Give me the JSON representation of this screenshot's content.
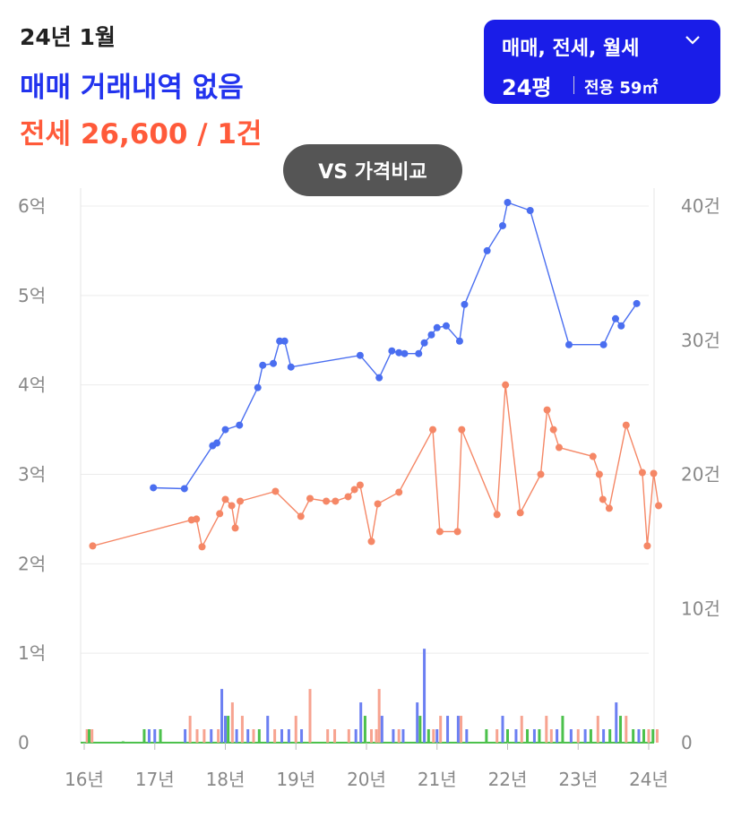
{
  "header": {
    "date": "24년 1월",
    "sale_status": "매매 거래내역 없음",
    "jeonse_summary": "전세 26,600 / 1건"
  },
  "selector": {
    "types": "매매, 전세, 월세",
    "pyeong": "24평",
    "area": "전용 59㎡",
    "icon": "chevron-down-icon"
  },
  "compare_button": "VS 가격비교",
  "colors": {
    "sale": "#4a6ef0",
    "jeonse": "#f58766",
    "volume_jeonse": "#f7a390",
    "volume_sale": "#6b7ff2",
    "volume_wolse": "#4cc14c",
    "selector_bg": "#1a1de8"
  },
  "chart_data": {
    "type": "line",
    "x_ticks": [
      "16년",
      "17년",
      "18년",
      "19년",
      "20년",
      "21년",
      "22년",
      "23년",
      "24년"
    ],
    "x_range": [
      2016,
      2024
    ],
    "y_left": {
      "ticks": [
        "0",
        "1억",
        "2억",
        "3억",
        "4억",
        "5억",
        "6억"
      ],
      "range": [
        0,
        6
      ]
    },
    "y_right": {
      "ticks": [
        "0",
        "10건",
        "20건",
        "30건",
        "40건"
      ],
      "range": [
        0,
        40
      ]
    },
    "grid": true,
    "series": [
      {
        "id": "sale",
        "points": [
          [
            2016.98,
            2.85
          ],
          [
            2017.42,
            2.84
          ],
          [
            2017.82,
            3.32
          ],
          [
            2017.88,
            3.35
          ],
          [
            2018.0,
            3.5
          ],
          [
            2018.2,
            3.55
          ],
          [
            2018.46,
            3.97
          ],
          [
            2018.53,
            4.22
          ],
          [
            2018.68,
            4.24
          ],
          [
            2018.77,
            4.49
          ],
          [
            2018.84,
            4.49
          ],
          [
            2018.93,
            4.2
          ],
          [
            2019.91,
            4.33
          ],
          [
            2020.18,
            4.08
          ],
          [
            2020.36,
            4.38
          ],
          [
            2020.46,
            4.36
          ],
          [
            2020.54,
            4.35
          ],
          [
            2020.74,
            4.35
          ],
          [
            2020.82,
            4.47
          ],
          [
            2020.92,
            4.56
          ],
          [
            2021.0,
            4.64
          ],
          [
            2021.13,
            4.66
          ],
          [
            2021.32,
            4.49
          ],
          [
            2021.39,
            4.9
          ],
          [
            2021.71,
            5.5
          ],
          [
            2021.93,
            5.78
          ],
          [
            2022.0,
            6.04
          ],
          [
            2022.32,
            5.95
          ],
          [
            2022.87,
            4.45
          ],
          [
            2023.36,
            4.45
          ],
          [
            2023.53,
            4.74
          ],
          [
            2023.61,
            4.66
          ],
          [
            2023.83,
            4.91
          ]
        ]
      },
      {
        "id": "jeonse",
        "points": [
          [
            2016.12,
            2.2
          ],
          [
            2017.52,
            2.49
          ],
          [
            2017.59,
            2.5
          ],
          [
            2017.67,
            2.19
          ],
          [
            2017.92,
            2.56
          ],
          [
            2018.0,
            2.72
          ],
          [
            2018.09,
            2.65
          ],
          [
            2018.14,
            2.4
          ],
          [
            2018.21,
            2.7
          ],
          [
            2018.71,
            2.81
          ],
          [
            2019.07,
            2.53
          ],
          [
            2019.2,
            2.73
          ],
          [
            2019.43,
            2.7
          ],
          [
            2019.56,
            2.7
          ],
          [
            2019.74,
            2.75
          ],
          [
            2019.83,
            2.83
          ],
          [
            2019.91,
            2.88
          ],
          [
            2020.07,
            2.25
          ],
          [
            2020.16,
            2.67
          ],
          [
            2020.46,
            2.8
          ],
          [
            2020.94,
            3.5
          ],
          [
            2021.04,
            2.36
          ],
          [
            2021.29,
            2.36
          ],
          [
            2021.35,
            3.5
          ],
          [
            2021.85,
            2.55
          ],
          [
            2021.97,
            4.0
          ],
          [
            2022.18,
            2.57
          ],
          [
            2022.47,
            3.0
          ],
          [
            2022.56,
            3.72
          ],
          [
            2022.65,
            3.5
          ],
          [
            2022.73,
            3.3
          ],
          [
            2023.21,
            3.2
          ],
          [
            2023.3,
            3.0
          ],
          [
            2023.35,
            2.72
          ],
          [
            2023.44,
            2.62
          ],
          [
            2023.68,
            3.55
          ],
          [
            2023.91,
            3.02
          ],
          [
            2023.98,
            2.2
          ],
          [
            2024.07,
            3.01
          ],
          [
            2024.14,
            2.65
          ]
        ]
      }
    ],
    "volume_bars": [
      {
        "x": 2016.04,
        "count": 1,
        "type": "jeonse"
      },
      {
        "x": 2016.07,
        "count": 1,
        "type": "wolse"
      },
      {
        "x": 2016.11,
        "count": 1,
        "type": "jeonse"
      },
      {
        "x": 2016.55,
        "count": 0.1,
        "type": "wolse"
      },
      {
        "x": 2016.85,
        "count": 1,
        "type": "wolse"
      },
      {
        "x": 2016.92,
        "count": 1,
        "type": "sale"
      },
      {
        "x": 2017.0,
        "count": 1,
        "type": "sale"
      },
      {
        "x": 2017.08,
        "count": 1,
        "type": "wolse"
      },
      {
        "x": 2017.43,
        "count": 1,
        "type": "sale"
      },
      {
        "x": 2017.5,
        "count": 2,
        "type": "jeonse"
      },
      {
        "x": 2017.6,
        "count": 1,
        "type": "jeonse"
      },
      {
        "x": 2017.7,
        "count": 1,
        "type": "jeonse"
      },
      {
        "x": 2017.8,
        "count": 1,
        "type": "sale"
      },
      {
        "x": 2017.9,
        "count": 1,
        "type": "jeonse"
      },
      {
        "x": 2017.95,
        "count": 4,
        "type": "sale"
      },
      {
        "x": 2018.0,
        "count": 2,
        "type": "sale"
      },
      {
        "x": 2018.04,
        "count": 2,
        "type": "wolse"
      },
      {
        "x": 2018.1,
        "count": 3,
        "type": "jeonse"
      },
      {
        "x": 2018.16,
        "count": 1,
        "type": "sale"
      },
      {
        "x": 2018.24,
        "count": 2,
        "type": "jeonse"
      },
      {
        "x": 2018.32,
        "count": 1,
        "type": "sale"
      },
      {
        "x": 2018.4,
        "count": 1,
        "type": "jeonse"
      },
      {
        "x": 2018.48,
        "count": 1,
        "type": "wolse"
      },
      {
        "x": 2018.6,
        "count": 2,
        "type": "sale"
      },
      {
        "x": 2018.7,
        "count": 1,
        "type": "jeonse"
      },
      {
        "x": 2018.8,
        "count": 1,
        "type": "sale"
      },
      {
        "x": 2018.9,
        "count": 1,
        "type": "sale"
      },
      {
        "x": 2019.0,
        "count": 2,
        "type": "jeonse"
      },
      {
        "x": 2019.08,
        "count": 1,
        "type": "sale"
      },
      {
        "x": 2019.2,
        "count": 4,
        "type": "jeonse"
      },
      {
        "x": 2019.45,
        "count": 1,
        "type": "jeonse"
      },
      {
        "x": 2019.55,
        "count": 1,
        "type": "jeonse"
      },
      {
        "x": 2019.75,
        "count": 1,
        "type": "jeonse"
      },
      {
        "x": 2019.85,
        "count": 1,
        "type": "sale"
      },
      {
        "x": 2019.92,
        "count": 3,
        "type": "sale"
      },
      {
        "x": 2019.98,
        "count": 2,
        "type": "wolse"
      },
      {
        "x": 2020.07,
        "count": 1,
        "type": "jeonse"
      },
      {
        "x": 2020.14,
        "count": 1,
        "type": "jeonse"
      },
      {
        "x": 2020.18,
        "count": 4,
        "type": "jeonse"
      },
      {
        "x": 2020.22,
        "count": 2,
        "type": "sale"
      },
      {
        "x": 2020.38,
        "count": 1,
        "type": "sale"
      },
      {
        "x": 2020.46,
        "count": 1,
        "type": "jeonse"
      },
      {
        "x": 2020.52,
        "count": 1,
        "type": "sale"
      },
      {
        "x": 2020.72,
        "count": 3,
        "type": "sale"
      },
      {
        "x": 2020.76,
        "count": 2,
        "type": "wolse"
      },
      {
        "x": 2020.82,
        "count": 7,
        "type": "sale"
      },
      {
        "x": 2020.88,
        "count": 1,
        "type": "wolse"
      },
      {
        "x": 2020.95,
        "count": 1,
        "type": "jeonse"
      },
      {
        "x": 2021.0,
        "count": 1,
        "type": "sale"
      },
      {
        "x": 2021.05,
        "count": 2,
        "type": "jeonse"
      },
      {
        "x": 2021.15,
        "count": 2,
        "type": "sale"
      },
      {
        "x": 2021.3,
        "count": 2,
        "type": "sale"
      },
      {
        "x": 2021.34,
        "count": 2,
        "type": "jeonse"
      },
      {
        "x": 2021.42,
        "count": 1,
        "type": "sale"
      },
      {
        "x": 2021.7,
        "count": 1,
        "type": "wolse"
      },
      {
        "x": 2021.85,
        "count": 1,
        "type": "jeonse"
      },
      {
        "x": 2021.93,
        "count": 2,
        "type": "sale"
      },
      {
        "x": 2022.0,
        "count": 1,
        "type": "wolse"
      },
      {
        "x": 2022.12,
        "count": 1,
        "type": "sale"
      },
      {
        "x": 2022.2,
        "count": 2,
        "type": "jeonse"
      },
      {
        "x": 2022.28,
        "count": 1,
        "type": "wolse"
      },
      {
        "x": 2022.38,
        "count": 1,
        "type": "sale"
      },
      {
        "x": 2022.45,
        "count": 1,
        "type": "wolse"
      },
      {
        "x": 2022.55,
        "count": 2,
        "type": "jeonse"
      },
      {
        "x": 2022.62,
        "count": 1,
        "type": "jeonse"
      },
      {
        "x": 2022.7,
        "count": 1,
        "type": "sale"
      },
      {
        "x": 2022.78,
        "count": 2,
        "type": "wolse"
      },
      {
        "x": 2022.9,
        "count": 1,
        "type": "sale"
      },
      {
        "x": 2023.0,
        "count": 1,
        "type": "jeonse"
      },
      {
        "x": 2023.1,
        "count": 1,
        "type": "sale"
      },
      {
        "x": 2023.18,
        "count": 1,
        "type": "wolse"
      },
      {
        "x": 2023.28,
        "count": 2,
        "type": "jeonse"
      },
      {
        "x": 2023.36,
        "count": 1,
        "type": "sale"
      },
      {
        "x": 2023.45,
        "count": 1,
        "type": "wolse"
      },
      {
        "x": 2023.54,
        "count": 3,
        "type": "sale"
      },
      {
        "x": 2023.6,
        "count": 2,
        "type": "wolse"
      },
      {
        "x": 2023.68,
        "count": 2,
        "type": "jeonse"
      },
      {
        "x": 2023.78,
        "count": 1,
        "type": "wolse"
      },
      {
        "x": 2023.86,
        "count": 1,
        "type": "sale"
      },
      {
        "x": 2023.93,
        "count": 1,
        "type": "wolse"
      },
      {
        "x": 2024.0,
        "count": 1,
        "type": "jeonse"
      },
      {
        "x": 2024.06,
        "count": 1,
        "type": "wolse"
      },
      {
        "x": 2024.12,
        "count": 1,
        "type": "jeonse"
      }
    ]
  }
}
